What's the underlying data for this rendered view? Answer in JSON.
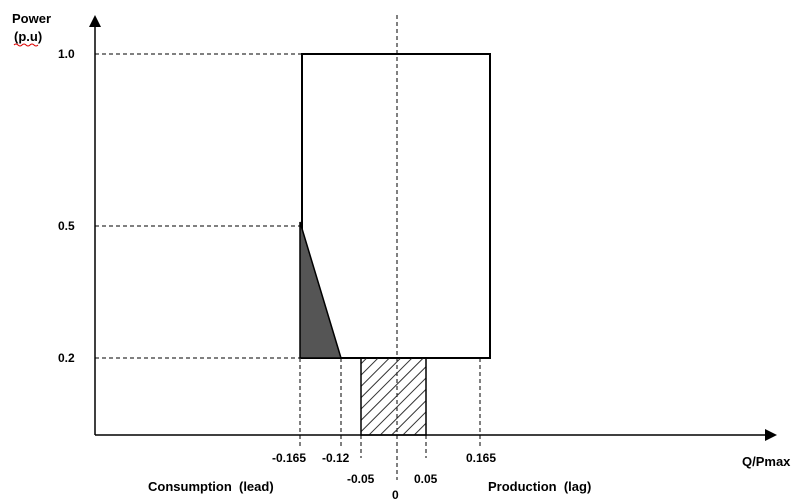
{
  "diagram": {
    "y_axis_label_line1": "Power",
    "y_axis_label_line2": "(p.u)",
    "x_axis_label": "Q/Pmax",
    "left_region_label": "Consumption  (lead)",
    "right_region_label": "Production  (lag)",
    "y_ticks": [
      "1.0",
      "0.5",
      "0.2"
    ],
    "x_ticks": [
      "-0.165",
      "-0.12",
      "-0.05",
      "0",
      "0.05",
      "0.165"
    ],
    "colors": {
      "line": "#000000",
      "triangle_fill": "#555555",
      "hatch": "#333333",
      "background": "#ffffff"
    }
  }
}
